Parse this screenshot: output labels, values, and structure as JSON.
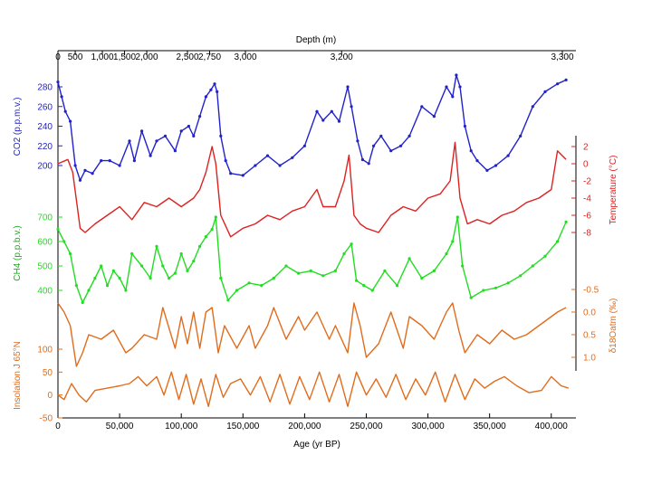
{
  "chart_data": {
    "type": "line",
    "top_axis": {
      "label": "Depth (m)",
      "ticks": [
        {
          "label": "0",
          "age": 0
        },
        {
          "label": "500",
          "age": 14000
        },
        {
          "label": "1,000",
          "age": 36000
        },
        {
          "label": "1,500",
          "age": 54000
        },
        {
          "label": "2,000",
          "age": 72000
        },
        {
          "label": "2,500",
          "age": 105000
        },
        {
          "label": "2,750",
          "age": 123000
        },
        {
          "label": "3,000",
          "age": 152000
        },
        {
          "label": "3,200",
          "age": 230000
        },
        {
          "label": "3,300",
          "age": 409000
        }
      ]
    },
    "bottom_axis": {
      "label": "Age (yr BP)",
      "xlim": [
        0,
        420000
      ],
      "ticks": [
        {
          "label": "0",
          "value": 0
        },
        {
          "label": "50,000",
          "value": 50000
        },
        {
          "label": "100,000",
          "value": 100000
        },
        {
          "label": "150,000",
          "value": 150000
        },
        {
          "label": "200,000",
          "value": 200000
        },
        {
          "label": "250,000",
          "value": 250000
        },
        {
          "label": "300,000",
          "value": 300000
        },
        {
          "label": "350,000",
          "value": 350000
        },
        {
          "label": "400,000",
          "value": 400000
        }
      ]
    },
    "series": [
      {
        "key": "co2",
        "ylabel": "CO2 (p.p.m.v.)",
        "side": "left",
        "color": "#2222cc",
        "ticks": [
          "280",
          "260",
          "240",
          "220",
          "200"
        ],
        "x": [
          0,
          3000,
          6000,
          10000,
          14000,
          18000,
          22000,
          28000,
          35000,
          42000,
          50000,
          58000,
          62000,
          68000,
          75000,
          80000,
          87000,
          95000,
          100000,
          106000,
          110000,
          115000,
          120000,
          124000,
          127000,
          129000,
          132000,
          136000,
          140000,
          150000,
          160000,
          170000,
          180000,
          190000,
          200000,
          210000,
          215000,
          222000,
          228000,
          235000,
          238000,
          243000,
          247000,
          252000,
          256000,
          262000,
          270000,
          278000,
          285000,
          295000,
          305000,
          315000,
          320000,
          323000,
          326000,
          330000,
          335000,
          340000,
          348000,
          355000,
          365000,
          375000,
          385000,
          395000,
          405000,
          412000
        ],
        "values": [
          285,
          270,
          255,
          245,
          200,
          185,
          195,
          192,
          205,
          205,
          200,
          225,
          205,
          235,
          210,
          225,
          230,
          215,
          235,
          240,
          230,
          250,
          270,
          277,
          283,
          275,
          230,
          205,
          192,
          190,
          200,
          210,
          200,
          208,
          220,
          255,
          246,
          255,
          245,
          280,
          260,
          225,
          206,
          202,
          220,
          230,
          215,
          220,
          230,
          260,
          250,
          280,
          270,
          292,
          280,
          240,
          215,
          205,
          195,
          200,
          210,
          230,
          260,
          275,
          283,
          287
        ]
      },
      {
        "key": "temperature",
        "ylabel": "Temperature (°C)",
        "side": "right",
        "color": "#dd2222",
        "ticks": [
          "2",
          "0",
          "-2",
          "-4",
          "-6",
          "-8"
        ],
        "x": [
          0,
          8000,
          12000,
          18000,
          22000,
          30000,
          40000,
          50000,
          60000,
          70000,
          80000,
          90000,
          100000,
          110000,
          115000,
          120000,
          125000,
          128000,
          132000,
          140000,
          150000,
          160000,
          170000,
          180000,
          190000,
          200000,
          210000,
          215000,
          225000,
          232000,
          236000,
          240000,
          245000,
          250000,
          260000,
          270000,
          280000,
          290000,
          300000,
          310000,
          318000,
          322000,
          326000,
          332000,
          340000,
          350000,
          360000,
          370000,
          380000,
          390000,
          400000,
          405000,
          412000
        ],
        "values": [
          0,
          0.5,
          -1,
          -7.5,
          -8,
          -7,
          -6,
          -5,
          -6.5,
          -4.5,
          -5,
          -4,
          -5,
          -4,
          -3,
          -1,
          2,
          0,
          -6,
          -8.5,
          -7.5,
          -7,
          -6,
          -6.5,
          -5.5,
          -5,
          -3,
          -5,
          -5,
          -2,
          1,
          -6,
          -7,
          -7.5,
          -8,
          -6,
          -5,
          -5.5,
          -4,
          -3.5,
          -2,
          2.5,
          -4,
          -7,
          -6.5,
          -7,
          -6,
          -5.5,
          -4.5,
          -4,
          -3,
          1.5,
          0.5
        ]
      },
      {
        "key": "ch4",
        "ylabel": "CH4 (p.p.b.v.)",
        "side": "left",
        "color": "#22dd22",
        "ticks": [
          "700",
          "600",
          "500",
          "400"
        ],
        "x": [
          0,
          5000,
          10000,
          15000,
          20000,
          25000,
          30000,
          35000,
          40000,
          45000,
          50000,
          55000,
          60000,
          68000,
          75000,
          80000,
          85000,
          90000,
          95000,
          100000,
          105000,
          110000,
          115000,
          120000,
          125000,
          128000,
          132000,
          138000,
          145000,
          155000,
          165000,
          175000,
          185000,
          195000,
          205000,
          215000,
          225000,
          232000,
          238000,
          242000,
          248000,
          255000,
          265000,
          275000,
          285000,
          295000,
          305000,
          315000,
          320000,
          324000,
          328000,
          335000,
          345000,
          355000,
          365000,
          375000,
          385000,
          395000,
          405000,
          412000
        ],
        "values": [
          650,
          600,
          550,
          420,
          350,
          400,
          450,
          500,
          420,
          480,
          450,
          400,
          550,
          500,
          450,
          580,
          500,
          450,
          470,
          550,
          480,
          520,
          580,
          620,
          650,
          700,
          450,
          360,
          400,
          430,
          420,
          450,
          500,
          470,
          480,
          460,
          480,
          550,
          590,
          440,
          420,
          400,
          480,
          420,
          530,
          450,
          480,
          550,
          600,
          700,
          500,
          370,
          400,
          410,
          430,
          460,
          500,
          540,
          600,
          680
        ]
      },
      {
        "key": "d18o",
        "ylabel": "δ18Oatm (‰)",
        "side": "right",
        "color": "#e06c1c",
        "ticks": [
          "-0.5",
          "0.0",
          "0.5",
          "1.0"
        ],
        "x": [
          0,
          5000,
          10000,
          15000,
          20000,
          25000,
          35000,
          45000,
          55000,
          60000,
          70000,
          80000,
          85000,
          95000,
          100000,
          105000,
          110000,
          115000,
          120000,
          125000,
          130000,
          135000,
          145000,
          155000,
          160000,
          170000,
          175000,
          185000,
          195000,
          200000,
          210000,
          220000,
          225000,
          235000,
          240000,
          245000,
          250000,
          260000,
          270000,
          280000,
          285000,
          295000,
          305000,
          315000,
          320000,
          325000,
          330000,
          340000,
          350000,
          360000,
          370000,
          380000,
          390000,
          395000,
          405000,
          412000
        ],
        "values": [
          -0.2,
          0.0,
          0.3,
          1.2,
          0.9,
          0.5,
          0.6,
          0.4,
          0.9,
          0.8,
          0.5,
          0.6,
          -0.1,
          0.8,
          0.1,
          0.7,
          0.0,
          0.8,
          0.0,
          -0.1,
          0.9,
          0.3,
          0.8,
          0.3,
          0.8,
          0.3,
          -0.1,
          0.6,
          0.1,
          0.4,
          0.0,
          0.6,
          0.3,
          0.9,
          -0.2,
          0.3,
          1.0,
          0.7,
          0.0,
          0.8,
          0.1,
          0.3,
          0.6,
          0.0,
          -0.2,
          0.4,
          0.9,
          0.5,
          0.7,
          0.4,
          0.6,
          0.5,
          0.3,
          0.2,
          0.0,
          -0.1
        ]
      },
      {
        "key": "insolation",
        "ylabel": "Insolation J 65°N",
        "side": "left",
        "color": "#e06c1c",
        "ticks": [
          "100",
          "50",
          "0",
          "-50"
        ],
        "x": [
          0,
          5000,
          11000,
          17000,
          23000,
          30000,
          40000,
          50000,
          58000,
          65000,
          72000,
          80000,
          86000,
          92000,
          98000,
          104000,
          110000,
          116000,
          122000,
          128000,
          134000,
          140000,
          148000,
          156000,
          164000,
          172000,
          180000,
          188000,
          196000,
          204000,
          212000,
          220000,
          228000,
          235000,
          242000,
          250000,
          258000,
          266000,
          274000,
          282000,
          290000,
          298000,
          306000,
          314000,
          322000,
          330000,
          338000,
          346000,
          354000,
          362000,
          372000,
          382000,
          392000,
          400000,
          408000,
          414000
        ],
        "values": [
          0,
          -10,
          25,
          0,
          -15,
          10,
          15,
          20,
          25,
          40,
          20,
          40,
          0,
          50,
          -10,
          45,
          -20,
          35,
          -25,
          45,
          -5,
          25,
          35,
          0,
          40,
          -15,
          45,
          -20,
          40,
          -10,
          50,
          -15,
          45,
          -25,
          50,
          0,
          35,
          -5,
          45,
          -10,
          35,
          0,
          50,
          -15,
          45,
          -10,
          35,
          15,
          30,
          40,
          20,
          5,
          10,
          40,
          20,
          15
        ]
      }
    ]
  }
}
